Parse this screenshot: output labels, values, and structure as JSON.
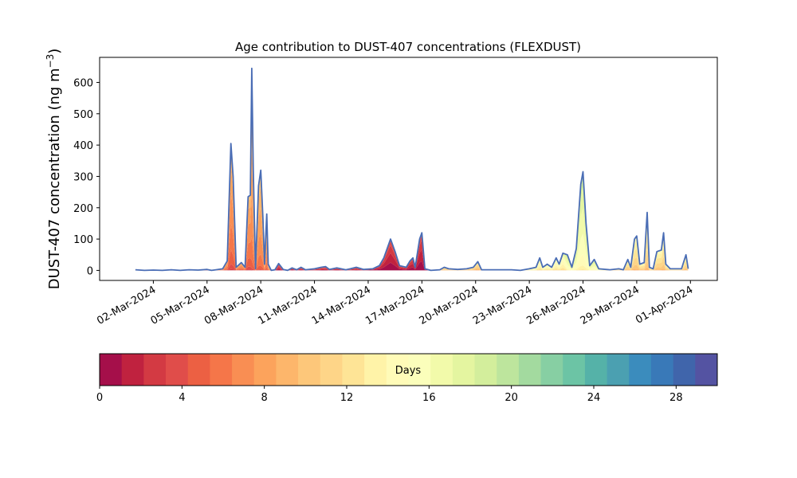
{
  "chart_data": {
    "type": "area",
    "title": "Age contribution to DUST-407 concentrations (FLEXDUST)",
    "ylabel_main": "DUST-407 concentration (ng m",
    "ylabel_sup": "−3",
    "ylabel_close": ")",
    "ylim": [
      -32,
      680
    ],
    "yticks": [
      0,
      100,
      200,
      300,
      400,
      500,
      600
    ],
    "xlim": [
      "2024-02-28T00:00",
      "2024-04-02T12:00"
    ],
    "xticks": [
      {
        "date": "2024-03-02",
        "label": "02-Mar-2024"
      },
      {
        "date": "2024-03-05",
        "label": "05-Mar-2024"
      },
      {
        "date": "2024-03-08",
        "label": "08-Mar-2024"
      },
      {
        "date": "2024-03-11",
        "label": "11-Mar-2024"
      },
      {
        "date": "2024-03-14",
        "label": "14-Mar-2024"
      },
      {
        "date": "2024-03-17",
        "label": "17-Mar-2024"
      },
      {
        "date": "2024-03-20",
        "label": "20-Mar-2024"
      },
      {
        "date": "2024-03-23",
        "label": "23-Mar-2024"
      },
      {
        "date": "2024-03-26",
        "label": "26-Mar-2024"
      },
      {
        "date": "2024-03-29",
        "label": "29-Mar-2024"
      },
      {
        "date": "2024-04-01",
        "label": "01-Apr-2024"
      }
    ],
    "total_series_color": "#4a6db5",
    "total": [
      [
        "2024-03-01T00:00",
        2
      ],
      [
        "2024-03-01T12:00",
        0
      ],
      [
        "2024-03-02T00:00",
        1
      ],
      [
        "2024-03-02T12:00",
        0
      ],
      [
        "2024-03-03T00:00",
        2
      ],
      [
        "2024-03-03T12:00",
        0
      ],
      [
        "2024-03-04T00:00",
        2
      ],
      [
        "2024-03-04T12:00",
        1
      ],
      [
        "2024-03-05T00:00",
        3
      ],
      [
        "2024-03-05T06:00",
        0
      ],
      [
        "2024-03-05T12:00",
        2
      ],
      [
        "2024-03-05T21:00",
        5
      ],
      [
        "2024-03-06T03:00",
        30
      ],
      [
        "2024-03-06T08:00",
        405
      ],
      [
        "2024-03-06T11:00",
        300
      ],
      [
        "2024-03-06T15:00",
        10
      ],
      [
        "2024-03-06T22:00",
        25
      ],
      [
        "2024-03-07T03:00",
        10
      ],
      [
        "2024-03-07T07:00",
        235
      ],
      [
        "2024-03-07T10:00",
        240
      ],
      [
        "2024-03-07T12:00",
        645
      ],
      [
        "2024-03-07T14:00",
        320
      ],
      [
        "2024-03-07T17:00",
        5
      ],
      [
        "2024-03-07T21:00",
        270
      ],
      [
        "2024-03-08T00:00",
        320
      ],
      [
        "2024-03-08T03:00",
        160
      ],
      [
        "2024-03-08T05:00",
        20
      ],
      [
        "2024-03-08T08:00",
        180
      ],
      [
        "2024-03-08T10:00",
        20
      ],
      [
        "2024-03-08T14:00",
        0
      ],
      [
        "2024-03-08T19:00",
        2
      ],
      [
        "2024-03-09T00:00",
        22
      ],
      [
        "2024-03-09T06:00",
        3
      ],
      [
        "2024-03-09T12:00",
        0
      ],
      [
        "2024-03-09T18:00",
        8
      ],
      [
        "2024-03-10T00:00",
        2
      ],
      [
        "2024-03-10T06:00",
        10
      ],
      [
        "2024-03-10T12:00",
        2
      ],
      [
        "2024-03-11T00:00",
        5
      ],
      [
        "2024-03-11T09:00",
        10
      ],
      [
        "2024-03-11T15:00",
        12
      ],
      [
        "2024-03-11T20:00",
        3
      ],
      [
        "2024-03-12T06:00",
        8
      ],
      [
        "2024-03-12T18:00",
        2
      ],
      [
        "2024-03-13T00:00",
        5
      ],
      [
        "2024-03-13T08:00",
        10
      ],
      [
        "2024-03-13T18:00",
        3
      ],
      [
        "2024-03-14T06:00",
        5
      ],
      [
        "2024-03-14T15:00",
        15
      ],
      [
        "2024-03-14T21:00",
        40
      ],
      [
        "2024-03-15T06:00",
        100
      ],
      [
        "2024-03-15T12:00",
        60
      ],
      [
        "2024-03-15T18:00",
        15
      ],
      [
        "2024-03-16T03:00",
        10
      ],
      [
        "2024-03-16T08:00",
        30
      ],
      [
        "2024-03-16T12:00",
        40
      ],
      [
        "2024-03-16T15:00",
        10
      ],
      [
        "2024-03-16T21:00",
        100
      ],
      [
        "2024-03-17T00:00",
        120
      ],
      [
        "2024-03-17T04:00",
        5
      ],
      [
        "2024-03-17T12:00",
        0
      ],
      [
        "2024-03-18T00:00",
        2
      ],
      [
        "2024-03-18T06:00",
        10
      ],
      [
        "2024-03-18T12:00",
        5
      ],
      [
        "2024-03-19T00:00",
        3
      ],
      [
        "2024-03-19T12:00",
        5
      ],
      [
        "2024-03-19T21:00",
        10
      ],
      [
        "2024-03-20T03:00",
        28
      ],
      [
        "2024-03-20T08:00",
        2
      ],
      [
        "2024-03-20T18:00",
        2
      ],
      [
        "2024-03-21T12:00",
        2
      ],
      [
        "2024-03-22T00:00",
        2
      ],
      [
        "2024-03-22T12:00",
        0
      ],
      [
        "2024-03-23T00:00",
        5
      ],
      [
        "2024-03-23T09:00",
        10
      ],
      [
        "2024-03-23T14:00",
        40
      ],
      [
        "2024-03-23T18:00",
        10
      ],
      [
        "2024-03-24T00:00",
        20
      ],
      [
        "2024-03-24T06:00",
        10
      ],
      [
        "2024-03-24T12:00",
        40
      ],
      [
        "2024-03-24T16:00",
        20
      ],
      [
        "2024-03-24T21:00",
        55
      ],
      [
        "2024-03-25T03:00",
        50
      ],
      [
        "2024-03-25T09:00",
        10
      ],
      [
        "2024-03-25T15:00",
        70
      ],
      [
        "2024-03-25T21:00",
        275
      ],
      [
        "2024-03-26T00:00",
        315
      ],
      [
        "2024-03-26T04:00",
        150
      ],
      [
        "2024-03-26T09:00",
        15
      ],
      [
        "2024-03-26T15:00",
        35
      ],
      [
        "2024-03-26T21:00",
        5
      ],
      [
        "2024-03-27T12:00",
        2
      ],
      [
        "2024-03-28T00:00",
        5
      ],
      [
        "2024-03-28T06:00",
        2
      ],
      [
        "2024-03-28T12:00",
        35
      ],
      [
        "2024-03-28T16:00",
        10
      ],
      [
        "2024-03-28T21:00",
        100
      ],
      [
        "2024-03-29T00:00",
        110
      ],
      [
        "2024-03-29T04:00",
        20
      ],
      [
        "2024-03-29T10:00",
        25
      ],
      [
        "2024-03-29T14:00",
        185
      ],
      [
        "2024-03-29T17:00",
        10
      ],
      [
        "2024-03-29T22:00",
        5
      ],
      [
        "2024-03-30T03:00",
        60
      ],
      [
        "2024-03-30T09:00",
        65
      ],
      [
        "2024-03-30T12:00",
        120
      ],
      [
        "2024-03-30T15:00",
        20
      ],
      [
        "2024-03-30T21:00",
        5
      ],
      [
        "2024-03-31T06:00",
        5
      ],
      [
        "2024-03-31T12:00",
        5
      ],
      [
        "2024-03-31T18:00",
        50
      ],
      [
        "2024-03-31T21:00",
        5
      ]
    ],
    "colorbar": {
      "label": "Days",
      "vmin": 0,
      "vmax": 30,
      "ticks": [
        0,
        4,
        8,
        12,
        16,
        20,
        24,
        28
      ],
      "colors": [
        "#a50f4a",
        "#c0223f",
        "#d33a43",
        "#e04d4a",
        "#ec6043",
        "#f57649",
        "#f98e53",
        "#fca35c",
        "#fdb66b",
        "#fdc77a",
        "#fed588",
        "#fee496",
        "#fff3a8",
        "#fffbb8",
        "#fbfebb",
        "#f2faaa",
        "#e4f5a0",
        "#d3ee9c",
        "#bde59d",
        "#a3da9f",
        "#87cfa3",
        "#6cc4a5",
        "#55b2a8",
        "#4ba0b1",
        "#3b8cbd",
        "#3979b8",
        "#4065ab",
        "#5453a2"
      ]
    }
  }
}
